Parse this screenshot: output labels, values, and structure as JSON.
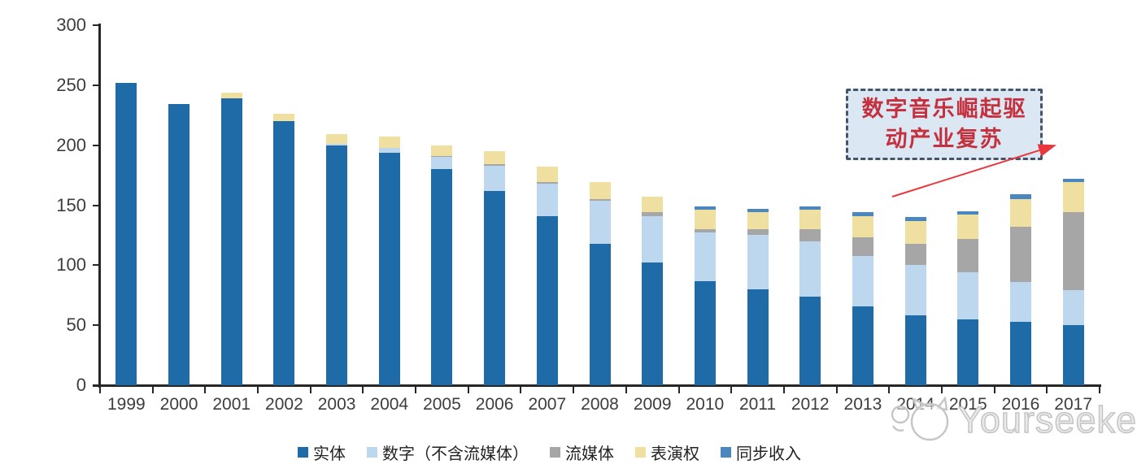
{
  "chart_data": {
    "type": "bar",
    "stacked": true,
    "categories": [
      "1999",
      "2000",
      "2001",
      "2002",
      "2003",
      "2004",
      "2005",
      "2006",
      "2007",
      "2008",
      "2009",
      "2010",
      "2011",
      "2012",
      "2013",
      "2014",
      "2015",
      "2016",
      "2017"
    ],
    "series": [
      {
        "key": "physical",
        "name": "实体",
        "color": "#1F6BA8",
        "values": [
          252,
          234,
          239,
          220,
          200,
          194,
          180,
          162,
          141,
          118,
          102,
          87,
          80,
          74,
          66,
          58,
          55,
          53,
          50
        ]
      },
      {
        "key": "digital-excl-streaming",
        "name": "数字（不含流媒体）",
        "color": "#BDD7EE",
        "values": [
          0,
          0,
          0,
          0,
          1,
          4,
          10,
          21,
          27,
          36,
          39,
          40,
          45,
          46,
          42,
          42,
          39,
          33,
          29
        ]
      },
      {
        "key": "streaming",
        "name": "流媒体",
        "color": "#A6A6A6",
        "values": [
          0,
          0,
          0,
          0,
          0,
          0,
          1,
          1,
          1,
          1,
          3,
          3,
          5,
          10,
          15,
          18,
          28,
          46,
          65
        ]
      },
      {
        "key": "performance-rights",
        "name": "表演权",
        "color": "#EFDFA0",
        "values": [
          0,
          0,
          5,
          6,
          8,
          9,
          9,
          11,
          13,
          14,
          13,
          16,
          14,
          16,
          18,
          19,
          20,
          23,
          25
        ]
      },
      {
        "key": "sync-revenue",
        "name": "同步收入",
        "color": "#4A86C0",
        "values": [
          0,
          0,
          0,
          0,
          0,
          0,
          0,
          0,
          0,
          0,
          0,
          3,
          3,
          3,
          3,
          3,
          3,
          4,
          3
        ]
      }
    ],
    "title": "",
    "xlabel": "",
    "ylabel": "",
    "ylim": [
      0,
      300
    ],
    "yticks": [
      0,
      50,
      100,
      150,
      200,
      250,
      300
    ],
    "grid": false,
    "legend_position": "bottom"
  },
  "annotation": {
    "line1": "数字音乐崛起驱",
    "line2": "动产业复苏",
    "text_color": "#C5303E",
    "box_fill": "#DBE7F3",
    "box_border_color": "#44546A",
    "arrow_color": "#E8383D"
  },
  "watermark": {
    "text": "Yourseeker"
  }
}
